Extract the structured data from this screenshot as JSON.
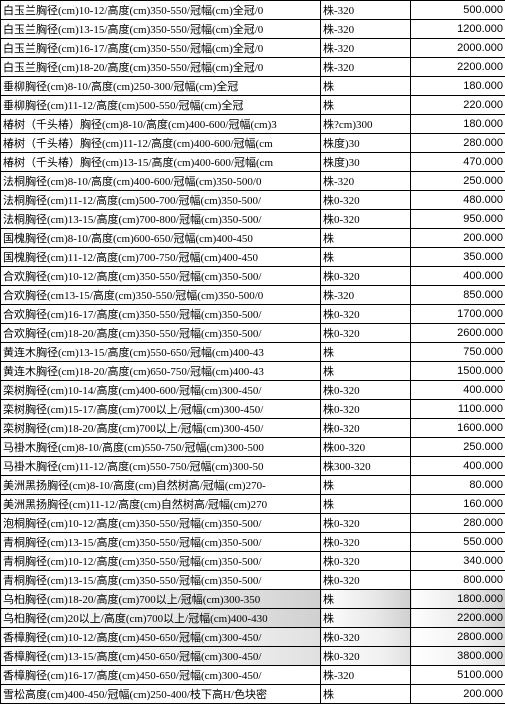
{
  "table": {
    "rows": [
      {
        "desc": "白玉兰胸径(cm)10-12/高度(cm)350-550/冠幅(cm)全冠/0",
        "unit": "株-320",
        "price": "500.000",
        "shade": false
      },
      {
        "desc": "白玉兰胸径(cm)13-15/高度(cm)350-550/冠幅(cm)全冠/0",
        "unit": "株-320",
        "price": "1200.000",
        "shade": false
      },
      {
        "desc": "白玉兰胸径(cm)16-17/高度(cm)350-550/冠幅(cm)全冠/0",
        "unit": "株-320",
        "price": "2000.000",
        "shade": false
      },
      {
        "desc": "白玉兰胸径(cm)18-20/高度(cm)350-550/冠幅(cm)全冠/0",
        "unit": "株-320",
        "price": "2200.000",
        "shade": false
      },
      {
        "desc": "垂柳胸径(cm)8-10/高度(cm)250-300/冠幅(cm)全冠",
        "unit": "株",
        "price": "180.000",
        "shade": false
      },
      {
        "desc": "垂柳胸径(cm)11-12/高度(cm)500-550/冠幅(cm)全冠",
        "unit": "株",
        "price": "220.000",
        "shade": false
      },
      {
        "desc": "椿树（千头椿）胸径(cm)8-10/高度(cm)400-600/冠幅(cm)3",
        "unit": "株?cm)300",
        "price": "180.000",
        "shade": false
      },
      {
        "desc": "椿树（千头椿）胸径(cm)11-12/高度(cm)400-600/冠幅(cm",
        "unit": "株度)30",
        "price": "280.000",
        "shade": false
      },
      {
        "desc": "椿树（千头椿）胸径(cm)13-15/高度(cm)400-600/冠幅(cm",
        "unit": "株度)30",
        "price": "470.000",
        "shade": false
      },
      {
        "desc": "法桐胸径(cm)8-10/高度(cm)400-600/冠幅(cm)350-500/0",
        "unit": "株-320",
        "price": "250.000",
        "shade": false
      },
      {
        "desc": "法桐胸径(cm)11-12/高度(cm)500-700/冠幅(cm)350-500/",
        "unit": "株0-320",
        "price": "480.000",
        "shade": false
      },
      {
        "desc": "法桐胸径(cm)13-15/高度(cm)700-800/冠幅(cm)350-500/",
        "unit": "株0-320",
        "price": "950.000",
        "shade": false
      },
      {
        "desc": "国槐胸径(cm)8-10/高度(cm)600-650/冠幅(cm)400-450",
        "unit": "株",
        "price": "200.000",
        "shade": false
      },
      {
        "desc": "国槐胸径(cm)11-12/高度(cm)700-750/冠幅(cm)400-450",
        "unit": "株",
        "price": "350.000",
        "shade": false
      },
      {
        "desc": "合欢胸径(cm)10-12/高度(cm)350-550/冠幅(cm)350-500/",
        "unit": "株0-320",
        "price": "400.000",
        "shade": false
      },
      {
        "desc": "合欢胸径(cm13-15/高度(cm)350-550/冠幅(cm)350-500/0",
        "unit": "株-320",
        "price": "850.000",
        "shade": false
      },
      {
        "desc": "合欢胸径(cm)16-17/高度(cm)350-550/冠幅(cm)350-500/",
        "unit": "株0-320",
        "price": "1700.000",
        "shade": false
      },
      {
        "desc": "合欢胸径(cm)18-20/高度(cm)350-550/冠幅(cm)350-500/",
        "unit": "株0-320",
        "price": "2600.000",
        "shade": false
      },
      {
        "desc": "黄连木胸径(cm)13-15/高度(cm)550-650/冠幅(cm)400-43",
        "unit": "株",
        "price": "750.000",
        "shade": false
      },
      {
        "desc": "黄连木胸径(cm)18-20/高度(cm)650-750/冠幅(cm)400-43",
        "unit": "株",
        "price": "1500.000",
        "shade": false
      },
      {
        "desc": "栾树胸径(cm)10-14/高度(cm)400-600/冠幅(cm)300-450/",
        "unit": "株0-320",
        "price": "400.000",
        "shade": false
      },
      {
        "desc": "栾树胸径(cm)15-17/高度(cm)700以上/冠幅(cm)300-450/",
        "unit": "株0-320",
        "price": "1100.000",
        "shade": false
      },
      {
        "desc": "栾树胸径(cm)18-20/高度(cm)700以上/冠幅(cm)300-450/",
        "unit": "株0-320",
        "price": "1600.000",
        "shade": false
      },
      {
        "desc": "马褂木胸径(cm)8-10/高度(cm)550-750/冠幅(cm)300-500",
        "unit": "株00-320",
        "price": "250.000",
        "shade": false
      },
      {
        "desc": "马褂木胸径(cm)11-12/高度(cm)550-750/冠幅(cm)300-50",
        "unit": "株300-320",
        "price": "400.000",
        "shade": false
      },
      {
        "desc": "美洲黑扬胸径(cm)8-10/高度(cm)自然树高/冠幅(cm)270-",
        "unit": "株",
        "price": "80.000",
        "shade": false
      },
      {
        "desc": "美洲黑扬胸径(cm)11-12/高度(cm)自然树高/冠幅(cm)270",
        "unit": "株",
        "price": "160.000",
        "shade": false
      },
      {
        "desc": "泡桐胸径(cm)10-12/高度(cm)350-550/冠幅(cm)350-500/",
        "unit": "株0-320",
        "price": "280.000",
        "shade": false
      },
      {
        "desc": "青桐胸径(cm)13-15/高度(cm)350-550/冠幅(cm)350-500/",
        "unit": "株0-320",
        "price": "550.000",
        "shade": false
      },
      {
        "desc": "青桐胸径(cm)10-12/高度(cm)350-550/冠幅(cm)350-500/",
        "unit": "株0-320",
        "price": "340.000",
        "shade": false
      },
      {
        "desc": "青桐胸径(cm)13-15/高度(cm)350-550/冠幅(cm)350-500/",
        "unit": "株0-320",
        "price": "800.000",
        "shade": false
      },
      {
        "desc": "乌桕胸径(cm)18-20/高度(cm)700以上/冠幅(cm)300-350",
        "unit": "株",
        "price": "1800.000",
        "shade": true
      },
      {
        "desc": "乌桕胸径(cm)20以上/高度(cm)700以上/冠幅(cm)400-430",
        "unit": "株",
        "price": "2200.000",
        "shade": true
      },
      {
        "desc": "香樟胸径(cm)10-12/高度(cm)450-650/冠幅(cm)300-450/",
        "unit": "株0-320",
        "price": "2800.000",
        "shade": "light"
      },
      {
        "desc": "香樟胸径(cm)13-15/高度(cm)450-650/冠幅(cm)300-450/",
        "unit": "株0-320",
        "price": "3800.000",
        "shade": "light"
      },
      {
        "desc": "香樟胸径(cm)16-17/高度(cm)450-650/冠幅(cm)300-450/",
        "unit": "株-320",
        "price": "5100.000",
        "shade": false
      },
      {
        "desc": "雪松高度(cm)400-450/冠幅(cm)250-400/枝下高H/色块密",
        "unit": "株",
        "price": "200.000",
        "shade": false
      }
    ],
    "colors": {
      "border": "#000000",
      "background": "#ffffff",
      "shade_start": "#ffffff",
      "shade_end": "#d0d0d0"
    },
    "fontsize": 11,
    "col_widths": {
      "desc": 320,
      "unit": 90,
      "price": 95
    }
  }
}
